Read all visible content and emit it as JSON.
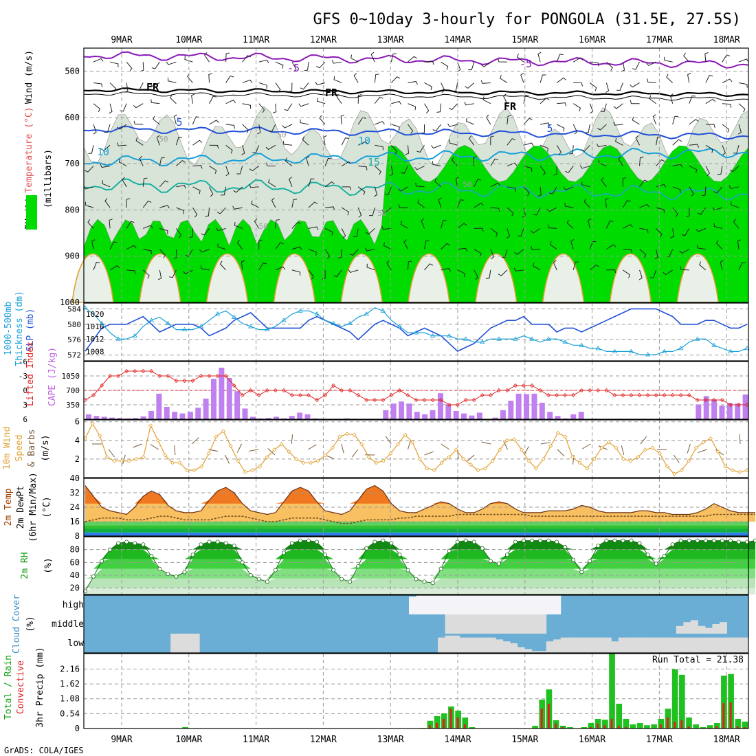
{
  "title": "GFS 0~10day 3-hourly for PONGOLA (31.5E, 27.5S)",
  "credit": "GrADS: COLA/IGES",
  "dates": [
    "9MAR",
    "10MAR",
    "11MAR",
    "12MAR",
    "13MAR",
    "14MAR",
    "15MAR",
    "16MAR",
    "17MAR",
    "18MAR"
  ],
  "colors": {
    "rh_green": "#00dc00",
    "rh_light": "#a6e8a6",
    "grid": "#a0a0a0",
    "temp_blue": "#2050d8",
    "temp_cyan": "#18a0d8",
    "temp_teal": "#1ab0a0",
    "fr_black": "#000000",
    "purple": "#8a18b8",
    "orange": "#e0a030",
    "red": "#e02020",
    "cloud": "#6aaed6",
    "cloud_white": "#f4f4f8"
  },
  "panels": {
    "upper": {
      "ylabels": [
        "RH (%)",
        "Temperature (°C)",
        "Wind (m/s)",
        "(millibars)"
      ],
      "yticks": [
        500,
        600,
        700,
        800,
        900,
        1000
      ],
      "ylim": [
        450,
        1000
      ],
      "contour_labels": [
        {
          "text": "-5",
          "color": "purple"
        },
        {
          "text": "-5",
          "color": "purple"
        },
        {
          "text": "FR",
          "color": "fr_black"
        },
        {
          "text": "FR",
          "color": "fr_black"
        },
        {
          "text": "FR",
          "color": "fr_black"
        },
        {
          "text": "5",
          "color": "temp_blue"
        },
        {
          "text": "5",
          "color": "temp_blue"
        },
        {
          "text": "10",
          "color": "temp_cyan"
        },
        {
          "text": "10",
          "color": "temp_cyan"
        },
        {
          "text": "15",
          "color": "temp_teal"
        },
        {
          "text": "50",
          "color": "grid"
        },
        {
          "text": "50",
          "color": "grid"
        },
        {
          "text": "50",
          "color": "grid"
        },
        {
          "text": "50",
          "color": "grid"
        },
        {
          "text": "50",
          "color": "grid"
        }
      ]
    },
    "thickness": {
      "ylabels": [
        "1000-500mb",
        "Thickness (dm)",
        "SLP (mb)"
      ],
      "left_ticks": [
        572,
        576,
        580,
        584
      ],
      "right_ticks": [
        1008,
        1012,
        1016,
        1020
      ],
      "left_range": [
        570.5,
        585.5
      ],
      "right_range": [
        1005,
        1023.5
      ]
    },
    "cape": {
      "ylabels": [
        "Lifted Index",
        "CAPE (J/kg)"
      ],
      "left_ticks": [
        "-6",
        "-3",
        "0",
        "3",
        "6"
      ],
      "right_ticks": [
        350,
        700,
        1050
      ],
      "right_range": [
        0,
        1400
      ]
    },
    "wind10m": {
      "ylabels": [
        "10m Wind",
        "Speed",
        "& Barbs",
        "(m/s)"
      ],
      "yticks": [
        2,
        4,
        6
      ],
      "ylim": [
        0,
        6.2
      ]
    },
    "temp2m": {
      "ylabels": [
        "2m Temp",
        "2m DewPt",
        "(6hr Min/Max)",
        "(°C)"
      ],
      "yticks": [
        8,
        16,
        24,
        32,
        40
      ],
      "ylim": [
        8,
        40
      ]
    },
    "rh2m": {
      "ylabels": [
        "2m RH",
        "(%)"
      ],
      "yticks": [
        20,
        40,
        60,
        80
      ],
      "ylim": [
        10,
        100
      ]
    },
    "cloud": {
      "ylabels": [
        "Cloud Cover",
        "(%)"
      ],
      "levels": [
        "high",
        "middle",
        "low"
      ]
    },
    "precip": {
      "ylabels": [
        "Total / Rain",
        "Convective",
        "3hr Precip (mm)"
      ],
      "yticks": [
        "0",
        "0.54",
        "1.08",
        "1.62",
        "2.16"
      ],
      "ylim": [
        0,
        2.72
      ],
      "run_total": "Run Total = 21.38"
    }
  },
  "chart_data": {
    "type": "meteogram",
    "title": "GFS 0~10day 3-hourly for PONGOLA (31.5E, 27.5S)",
    "time_step_hours": 3,
    "x_labels": [
      "9MAR",
      "10MAR",
      "11MAR",
      "12MAR",
      "13MAR",
      "14MAR",
      "15MAR",
      "16MAR",
      "17MAR",
      "18MAR"
    ],
    "thickness_1000_500mb_dm": [
      573,
      576,
      579,
      580,
      580,
      580,
      581,
      582,
      580,
      578,
      579,
      580,
      580,
      580,
      579,
      577,
      578,
      579,
      581,
      582,
      583,
      581,
      579,
      579,
      579,
      579,
      579,
      581,
      582,
      581,
      580,
      579,
      578,
      576,
      578,
      580,
      581,
      580,
      579,
      577,
      578,
      579,
      578,
      577,
      575,
      573,
      574,
      575,
      577,
      579,
      580,
      581,
      581,
      582,
      580,
      580,
      580,
      578,
      579,
      579,
      578,
      579,
      580,
      581,
      582,
      583,
      584,
      584,
      584,
      584,
      583,
      582,
      580,
      580,
      580,
      581,
      581,
      580,
      579,
      579,
      580
    ],
    "slp_mb": [
      1022,
      1020,
      1017,
      1014,
      1012,
      1012,
      1013,
      1016,
      1018,
      1019,
      1017,
      1015,
      1015,
      1015,
      1016,
      1018,
      1020,
      1021,
      1019,
      1017,
      1016,
      1015,
      1015,
      1016,
      1018,
      1020,
      1021,
      1021,
      1020,
      1018,
      1017,
      1016,
      1017,
      1019,
      1020,
      1022,
      1021,
      1018,
      1016,
      1014,
      1014,
      1014,
      1013,
      1013,
      1013,
      1012,
      1012,
      1011,
      1011,
      1012,
      1012,
      1012,
      1012,
      1013,
      1012,
      1011,
      1012,
      1012,
      1011,
      1010,
      1010,
      1009,
      1009,
      1008,
      1008,
      1008,
      1008,
      1007,
      1007,
      1007,
      1008,
      1008,
      1009,
      1011,
      1012,
      1012,
      1010,
      1009,
      1008,
      1008,
      1009
    ],
    "lifted_index": [
      2,
      1,
      -1,
      -3,
      -3,
      -4,
      -4,
      -4,
      -4,
      -3,
      -3,
      -2,
      -2,
      -2,
      -3,
      -3,
      -3,
      -3,
      -1,
      1,
      0,
      1,
      0,
      0,
      0,
      1,
      1,
      1,
      2,
      1,
      -1,
      0,
      0,
      1,
      2,
      2,
      2,
      1,
      0,
      1,
      2,
      2,
      2,
      2,
      3,
      3,
      2,
      2,
      1,
      1,
      0,
      0,
      -1,
      -1,
      -1,
      0,
      1,
      1,
      1,
      1,
      0,
      0,
      0,
      0,
      1,
      1,
      1,
      1,
      1,
      1,
      1,
      1,
      1,
      1,
      2,
      2,
      2,
      2,
      3,
      3,
      3
    ],
    "cape_jkg": [
      120,
      80,
      60,
      40,
      30,
      20,
      30,
      70,
      200,
      620,
      300,
      180,
      140,
      180,
      280,
      500,
      980,
      1250,
      1000,
      680,
      260,
      60,
      20,
      30,
      60,
      20,
      80,
      160,
      120,
      20,
      10,
      10,
      10,
      20,
      10,
      0,
      10,
      0,
      220,
      380,
      430,
      380,
      180,
      120,
      220,
      630,
      360,
      200,
      140,
      90,
      160,
      0,
      40,
      220,
      450,
      620,
      610,
      620,
      400,
      180,
      80,
      20,
      120,
      180,
      0,
      10,
      0,
      0,
      10,
      10,
      0,
      10,
      0,
      0,
      10,
      0,
      0,
      10,
      360,
      560,
      480,
      330,
      390,
      380,
      600
    ],
    "wind10m_speed_ms": [
      4.2,
      5.8,
      4.5,
      2.2,
      1.8,
      1.8,
      1.8,
      2.0,
      2.2,
      5.6,
      4.0,
      2.4,
      1.6,
      1.6,
      0.8,
      0.8,
      1.2,
      2.6,
      4.4,
      5.0,
      3.4,
      1.8,
      0.6,
      0.8,
      1.2,
      2.2,
      3.0,
      3.6,
      2.8,
      2.0,
      1.6,
      1.6,
      1.8,
      2.4,
      3.2,
      4.4,
      4.7,
      4.6,
      3.6,
      2.2,
      1.6,
      1.8,
      2.6,
      3.6,
      4.6,
      3.8,
      2.0,
      1.0,
      0.8,
      1.6,
      2.2,
      3.0,
      2.0,
      1.4,
      0.8,
      1.0,
      1.8,
      3.0,
      4.0,
      4.1,
      3.0,
      1.8,
      1.0,
      2.0,
      3.4,
      4.8,
      4.4,
      2.2,
      1.6,
      1.0,
      2.0,
      3.2,
      3.8,
      3.2,
      2.0,
      1.8,
      2.2,
      3.0,
      3.2,
      2.6,
      1.2,
      0.4,
      0.8,
      1.8,
      3.2,
      3.8,
      4.2,
      2.8,
      1.2,
      0.8,
      0.6,
      0.8
    ],
    "temp2m_c": [
      36,
      30,
      24,
      22,
      21,
      20,
      24,
      30,
      33,
      31,
      25,
      22,
      21,
      21,
      22,
      28,
      33,
      35,
      32,
      26,
      22,
      21,
      20,
      21,
      27,
      33,
      35,
      33,
      27,
      22,
      21,
      20,
      22,
      28,
      34,
      36,
      33,
      26,
      22,
      21,
      21,
      23,
      25,
      27,
      26,
      23,
      21,
      21,
      23,
      26,
      27,
      26,
      23,
      21,
      21,
      21,
      22,
      22,
      22,
      23,
      25,
      24,
      22,
      21,
      21,
      21,
      21,
      22,
      22,
      21,
      21,
      20,
      20,
      20,
      21,
      23,
      26,
      24,
      22,
      21,
      21,
      21
    ],
    "dewpt2m_c": [
      16,
      17,
      18,
      18,
      18,
      17,
      17,
      17,
      18,
      19,
      19,
      18,
      17,
      17,
      17,
      17,
      18,
      19,
      19,
      19,
      18,
      17,
      16,
      16,
      17,
      18,
      18,
      18,
      18,
      17,
      16,
      15,
      15,
      16,
      17,
      17,
      17,
      17,
      18,
      18,
      19,
      19,
      19,
      19,
      19,
      20,
      20,
      20,
      20,
      20,
      20,
      20,
      20,
      20,
      19,
      19,
      19,
      19,
      19,
      19,
      19,
      19,
      19,
      19,
      19,
      19,
      19,
      19,
      19,
      19,
      19,
      19,
      19,
      19,
      19,
      19,
      20,
      20,
      20,
      20,
      20,
      20
    ],
    "rh2m_pct": [
      15,
      38,
      62,
      80,
      90,
      92,
      90,
      88,
      70,
      50,
      42,
      38,
      45,
      72,
      88,
      92,
      92,
      90,
      86,
      60,
      40,
      34,
      30,
      48,
      75,
      90,
      94,
      94,
      92,
      72,
      48,
      34,
      30,
      54,
      82,
      92,
      94,
      90,
      72,
      48,
      34,
      30,
      28,
      50,
      78,
      92,
      94,
      92,
      82,
      62,
      58,
      72,
      92,
      94,
      94,
      94,
      94,
      92,
      84,
      64,
      45,
      62,
      86,
      94,
      94,
      94,
      94,
      90,
      72,
      58,
      70,
      88,
      94,
      94,
      94,
      94,
      94,
      94,
      94,
      92,
      92,
      94
    ],
    "cloud_high_pct": [
      0,
      0,
      0,
      0,
      0,
      0,
      0,
      0,
      0,
      0,
      0,
      0,
      0,
      0,
      0,
      0,
      0,
      0,
      0,
      0,
      0,
      0,
      0,
      0,
      0,
      0,
      0,
      0,
      0,
      0,
      0,
      0,
      0,
      0,
      0,
      0,
      0,
      0,
      0,
      0,
      0,
      0,
      0,
      0,
      0,
      92,
      100,
      100,
      100,
      100,
      100,
      100,
      100,
      100,
      100,
      100,
      100,
      100,
      100,
      100,
      100,
      100,
      100,
      100,
      100,
      100,
      0,
      0,
      0,
      0,
      0,
      0,
      0,
      0,
      0,
      0,
      0,
      0,
      0,
      0,
      0,
      0,
      0,
      0,
      0,
      0,
      0,
      0,
      0,
      0,
      0,
      0
    ],
    "cloud_middle_pct": [
      0,
      0,
      0,
      0,
      0,
      0,
      0,
      0,
      0,
      0,
      0,
      0,
      0,
      0,
      0,
      0,
      0,
      0,
      0,
      0,
      0,
      0,
      0,
      0,
      0,
      0,
      0,
      0,
      0,
      0,
      0,
      0,
      0,
      0,
      0,
      0,
      0,
      0,
      0,
      0,
      0,
      0,
      0,
      0,
      0,
      0,
      0,
      0,
      0,
      0,
      100,
      100,
      100,
      100,
      100,
      100,
      100,
      100,
      100,
      100,
      100,
      100,
      100,
      100,
      0,
      0,
      0,
      0,
      0,
      0,
      0,
      0,
      0,
      0,
      0,
      0,
      0,
      0,
      0,
      0,
      0,
      0,
      40,
      60,
      70,
      40,
      30,
      50,
      60,
      0
    ],
    "cloud_low_pct": [
      0,
      0,
      0,
      0,
      0,
      0,
      0,
      0,
      0,
      0,
      0,
      0,
      100,
      100,
      100,
      100,
      0,
      0,
      0,
      0,
      0,
      0,
      0,
      0,
      0,
      0,
      0,
      0,
      0,
      0,
      0,
      0,
      0,
      0,
      0,
      0,
      0,
      0,
      0,
      0,
      0,
      0,
      0,
      0,
      0,
      0,
      0,
      0,
      0,
      80,
      90,
      90,
      80,
      80,
      80,
      80,
      80,
      70,
      60,
      50,
      30,
      20,
      10,
      10,
      60,
      70,
      80,
      80,
      80,
      80,
      80,
      80,
      80,
      60,
      80,
      80,
      80,
      80,
      80,
      80,
      80,
      80,
      80,
      80,
      80,
      80,
      80,
      80,
      80,
      80,
      80,
      80
    ],
    "precip_total_mm": [
      0,
      0,
      0,
      0,
      0,
      0,
      0,
      0,
      0,
      0,
      0,
      0,
      0,
      0,
      0.05,
      0,
      0,
      0,
      0,
      0,
      0,
      0,
      0,
      0,
      0,
      0,
      0,
      0,
      0,
      0,
      0,
      0,
      0,
      0,
      0,
      0,
      0,
      0,
      0,
      0,
      0,
      0,
      0,
      0,
      0,
      0,
      0,
      0,
      0.02,
      0.28,
      0.45,
      0.55,
      0.8,
      0.65,
      0.4,
      0.05,
      0,
      0,
      0,
      0,
      0,
      0,
      0,
      0,
      0.1,
      1.05,
      1.42,
      0.3,
      0.1,
      0.05,
      0,
      0.05,
      0.2,
      0.35,
      0.32,
      2.72,
      0.9,
      0.35,
      0.15,
      0.2,
      0.12,
      0.15,
      0.35,
      0.72,
      2.15,
      1.95,
      0.4,
      0.15,
      0.05,
      0.12,
      0.2,
      1.92,
      1.98,
      0.35,
      0.25
    ],
    "precip_conv_mm": [
      0,
      0,
      0,
      0,
      0,
      0,
      0,
      0,
      0,
      0,
      0,
      0,
      0,
      0,
      0,
      0,
      0,
      0,
      0,
      0,
      0,
      0,
      0,
      0,
      0,
      0,
      0,
      0,
      0,
      0,
      0,
      0,
      0,
      0,
      0,
      0,
      0,
      0,
      0,
      0,
      0,
      0,
      0,
      0,
      0,
      0,
      0,
      0,
      0,
      0.12,
      0.2,
      0.35,
      0.72,
      0.4,
      0.15,
      0,
      0,
      0,
      0,
      0,
      0,
      0,
      0,
      0,
      0,
      0.72,
      0.9,
      0.18,
      0.05,
      0,
      0,
      0,
      0.05,
      0.18,
      0.12,
      0.35,
      0.1,
      0.05,
      0,
      0,
      0,
      0,
      0.15,
      0.4,
      0.25,
      0.3,
      0.08,
      0,
      0,
      0.03,
      0.08,
      0.92,
      0.95,
      0.08,
      0.05
    ],
    "run_total_mm": 21.38
  }
}
